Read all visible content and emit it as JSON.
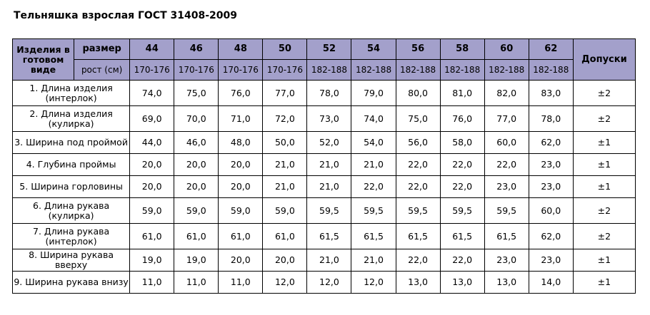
{
  "title": "Тельняшка взрослая ГОСТ 31408-2009",
  "header": {
    "corner": "Изделия в готовом виде",
    "size_label": "размер",
    "height_label": "рост (см)",
    "tolerance_label": "Допуски",
    "sizes": [
      "44",
      "46",
      "48",
      "50",
      "52",
      "54",
      "56",
      "58",
      "60",
      "62"
    ],
    "heights": [
      "170-176",
      "170-176",
      "170-176",
      "170-176",
      "182-188",
      "182-188",
      "182-188",
      "182-188",
      "182-188",
      "182-188"
    ]
  },
  "rows": [
    {
      "label": "1. Длина изделия (интерлок)",
      "values": [
        "74,0",
        "75,0",
        "76,0",
        "77,0",
        "78,0",
        "79,0",
        "80,0",
        "81,0",
        "82,0",
        "83,0"
      ],
      "tolerance": "±2"
    },
    {
      "label": "2. Длина изделия (кулирка)",
      "values": [
        "69,0",
        "70,0",
        "71,0",
        "72,0",
        "73,0",
        "74,0",
        "75,0",
        "76,0",
        "77,0",
        "78,0"
      ],
      "tolerance": "±2"
    },
    {
      "label": "3. Ширина под проймой",
      "values": [
        "44,0",
        "46,0",
        "48,0",
        "50,0",
        "52,0",
        "54,0",
        "56,0",
        "58,0",
        "60,0",
        "62,0"
      ],
      "tolerance": "±1"
    },
    {
      "label": "4. Глубина проймы",
      "values": [
        "20,0",
        "20,0",
        "20,0",
        "21,0",
        "21,0",
        "21,0",
        "22,0",
        "22,0",
        "22,0",
        "23,0"
      ],
      "tolerance": "±1"
    },
    {
      "label": "5. Ширина горловины",
      "values": [
        "20,0",
        "20,0",
        "20,0",
        "21,0",
        "21,0",
        "22,0",
        "22,0",
        "22,0",
        "23,0",
        "23,0"
      ],
      "tolerance": "±1"
    },
    {
      "label": "6. Длина рукава (кулирка)",
      "values": [
        "59,0",
        "59,0",
        "59,0",
        "59,0",
        "59,5",
        "59,5",
        "59,5",
        "59,5",
        "59,5",
        "60,0"
      ],
      "tolerance": "±2"
    },
    {
      "label": "7. Длина рукава (интерлок)",
      "values": [
        "61,0",
        "61,0",
        "61,0",
        "61,0",
        "61,5",
        "61,5",
        "61,5",
        "61,5",
        "61,5",
        "62,0"
      ],
      "tolerance": "±2"
    },
    {
      "label": "8. Ширина рукава вверху",
      "values": [
        "19,0",
        "19,0",
        "20,0",
        "20,0",
        "21,0",
        "21,0",
        "22,0",
        "22,0",
        "23,0",
        "23,0"
      ],
      "tolerance": "±1"
    },
    {
      "label": "9. Ширина рукава внизу",
      "values": [
        "11,0",
        "11,0",
        "11,0",
        "12,0",
        "12,0",
        "12,0",
        "13,0",
        "13,0",
        "13,0",
        "14,0"
      ],
      "tolerance": "±1"
    }
  ],
  "colors": {
    "header_background": "#a3a0cb",
    "border": "#000000"
  }
}
